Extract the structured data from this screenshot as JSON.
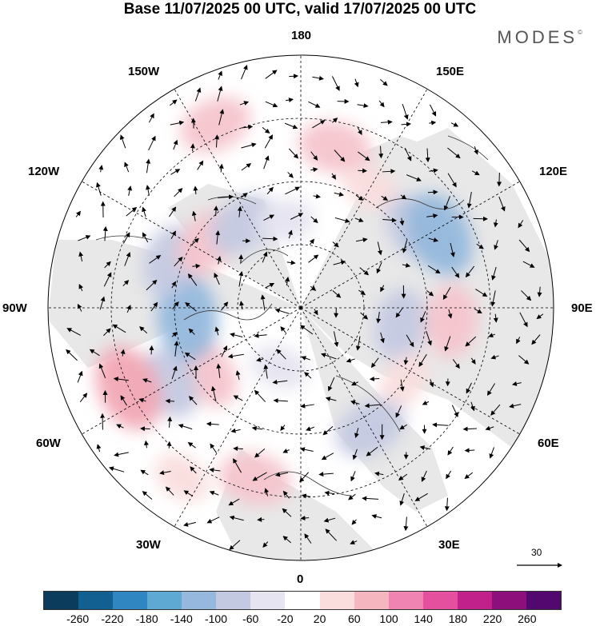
{
  "title": "Base 11/07/2025 00 UTC, valid 17/07/2025 00 UTC",
  "brand": {
    "name": "MODES",
    "mark": "©"
  },
  "longitude_labels": {
    "n180": "180",
    "w150": "150W",
    "e150": "150E",
    "w120": "120W",
    "e120": "120E",
    "w90": "90W",
    "e90": "90E",
    "w60": "60W",
    "e60": "60E",
    "w30": "30W",
    "e30": "30E",
    "s0": "0"
  },
  "reference_vector": {
    "label": "30"
  },
  "colorbar": {
    "colors": [
      "#0c3c5c",
      "#125f92",
      "#2f86c0",
      "#5ea8d4",
      "#95b8dc",
      "#c4c9e2",
      "#e5e4f0",
      "#ffffff",
      "#fadddd",
      "#f6b6c0",
      "#ef84b2",
      "#e4509d",
      "#c1218a",
      "#8c0f7c",
      "#52086f"
    ],
    "tick_labels": [
      "-260",
      "-220",
      "-180",
      "-140",
      "-100",
      "-60",
      "-20",
      "20",
      "60",
      "100",
      "140",
      "180",
      "220",
      "260"
    ]
  },
  "anomaly_features": [
    {
      "sign": 1,
      "level": 2,
      "angle_deg": 12,
      "radius_frac": 0.65
    },
    {
      "sign": 1,
      "level": 1,
      "angle_deg": 30,
      "radius_frac": 0.55
    },
    {
      "sign": -1,
      "level": 2,
      "angle_deg": 55,
      "radius_frac": 0.55
    },
    {
      "sign": -1,
      "level": 3,
      "angle_deg": 62,
      "radius_frac": 0.62
    },
    {
      "sign": 1,
      "level": 2,
      "angle_deg": 95,
      "radius_frac": 0.6
    },
    {
      "sign": -1,
      "level": 2,
      "angle_deg": 100,
      "radius_frac": 0.4
    },
    {
      "sign": 1,
      "level": 1,
      "angle_deg": 125,
      "radius_frac": 0.5
    },
    {
      "sign": -1,
      "level": 2,
      "angle_deg": 150,
      "radius_frac": 0.55
    },
    {
      "sign": 1,
      "level": 2,
      "angle_deg": 195,
      "radius_frac": 0.7
    },
    {
      "sign": -1,
      "level": 1,
      "angle_deg": 200,
      "radius_frac": 0.25
    },
    {
      "sign": 1,
      "level": 1,
      "angle_deg": 215,
      "radius_frac": 0.82
    },
    {
      "sign": 1,
      "level": 2,
      "angle_deg": 235,
      "radius_frac": 0.45
    },
    {
      "sign": -1,
      "level": 2,
      "angle_deg": 240,
      "radius_frac": 0.6
    },
    {
      "sign": 1,
      "level": 3,
      "angle_deg": 245,
      "radius_frac": 0.75
    },
    {
      "sign": -1,
      "level": 3,
      "angle_deg": 265,
      "radius_frac": 0.45
    },
    {
      "sign": -1,
      "level": 2,
      "angle_deg": 290,
      "radius_frac": 0.55
    },
    {
      "sign": 1,
      "level": 2,
      "angle_deg": 305,
      "radius_frac": 0.45
    },
    {
      "sign": -1,
      "level": 2,
      "angle_deg": 325,
      "radius_frac": 0.4
    },
    {
      "sign": 1,
      "level": 2,
      "angle_deg": 335,
      "radius_frac": 0.8
    },
    {
      "sign": -1,
      "level": 1,
      "angle_deg": 350,
      "radius_frac": 0.35
    }
  ]
}
